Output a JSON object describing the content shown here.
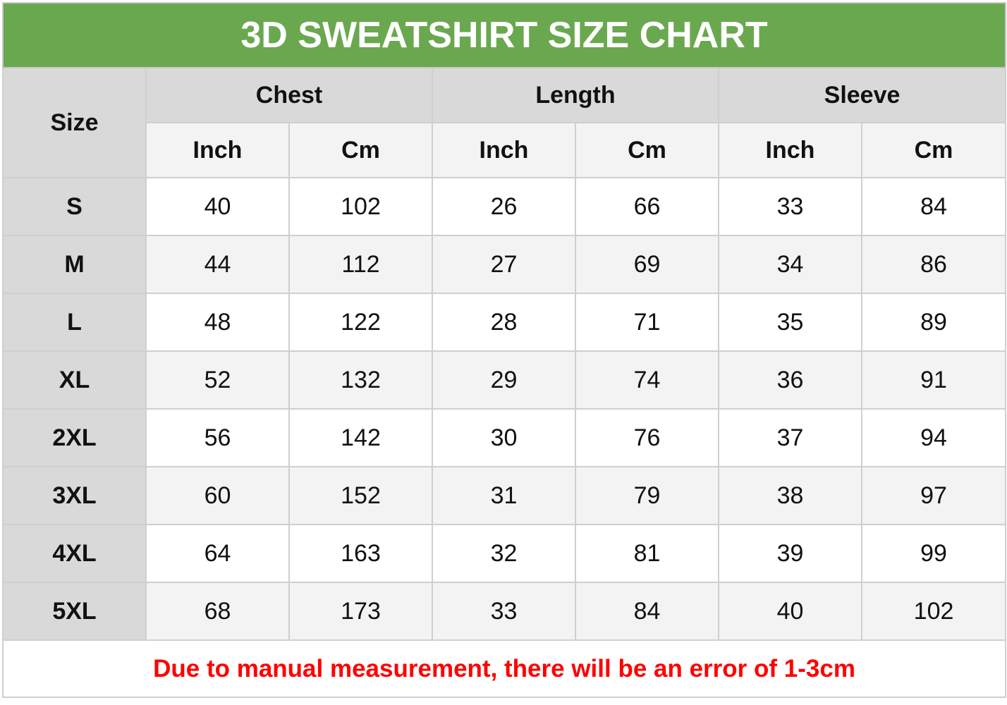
{
  "title": "3D SWEATSHIRT SIZE CHART",
  "header": {
    "size": "Size",
    "groups": [
      "Chest",
      "Length",
      "Sleeve"
    ],
    "units": [
      "Inch",
      "Cm",
      "Inch",
      "Cm",
      "Inch",
      "Cm"
    ]
  },
  "rows": [
    {
      "size": "S",
      "values": [
        "40",
        "102",
        "26",
        "66",
        "33",
        "84"
      ]
    },
    {
      "size": "M",
      "values": [
        "44",
        "112",
        "27",
        "69",
        "34",
        "86"
      ]
    },
    {
      "size": "L",
      "values": [
        "48",
        "122",
        "28",
        "71",
        "35",
        "89"
      ]
    },
    {
      "size": "XL",
      "values": [
        "52",
        "132",
        "29",
        "74",
        "36",
        "91"
      ]
    },
    {
      "size": "2XL",
      "values": [
        "56",
        "142",
        "30",
        "76",
        "37",
        "94"
      ]
    },
    {
      "size": "3XL",
      "values": [
        "60",
        "152",
        "31",
        "79",
        "38",
        "97"
      ]
    },
    {
      "size": "4XL",
      "values": [
        "64",
        "163",
        "32",
        "81",
        "39",
        "99"
      ]
    },
    {
      "size": "5XL",
      "values": [
        "68",
        "173",
        "33",
        "84",
        "40",
        "102"
      ]
    }
  ],
  "note": "Due to manual measurement, there will be an error of 1-3cm",
  "colors": {
    "title_bg": "#6aa84f",
    "note_text": "#ff0000",
    "header_bg": "#d9d9d9",
    "alt_row_bg": "#f3f3f3"
  }
}
